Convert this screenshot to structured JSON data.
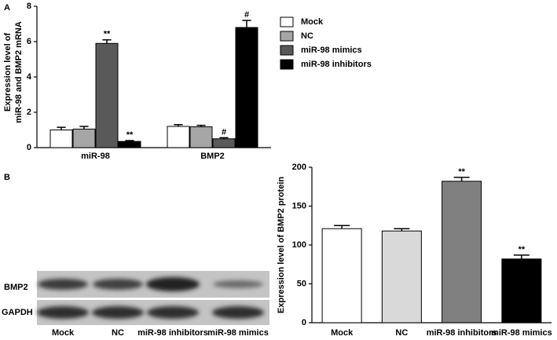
{
  "chart_data": [
    {
      "type": "bar",
      "panel": "A",
      "y_label": [
        "Expression level of",
        "miR-98 and BMP2 mRNA"
      ],
      "categories": [
        "miR-98",
        "BMP2"
      ],
      "series": [
        {
          "name": "Mock",
          "color": "#ffffff",
          "values": [
            1.0,
            1.2
          ],
          "errors": [
            0.15,
            0.1
          ],
          "significance": [
            null,
            null
          ]
        },
        {
          "name": "NC",
          "color": "#a6a6a6",
          "values": [
            1.05,
            1.18
          ],
          "errors": [
            0.15,
            0.08
          ],
          "significance": [
            null,
            null
          ]
        },
        {
          "name": "miR-98 mimics",
          "color": "#595959",
          "values": [
            5.9,
            0.5
          ],
          "errors": [
            0.2,
            0.06
          ],
          "significance": [
            "**",
            "#"
          ]
        },
        {
          "name": "miR-98 inhibitors",
          "color": "#000000",
          "values": [
            0.35,
            6.8
          ],
          "errors": [
            0.05,
            0.4
          ],
          "significance": [
            "**",
            "#"
          ]
        }
      ],
      "ylim": [
        0,
        8
      ],
      "yticks": [
        0,
        2,
        4,
        6,
        8
      ],
      "legend": "right"
    },
    {
      "type": "bar",
      "panel": "B",
      "y_label": [
        "Expression level of BMP2 protein"
      ],
      "categories": [
        "Mock",
        "NC",
        "miR-98 inhibitors",
        "miR-98 mimics"
      ],
      "values": [
        121,
        118,
        182,
        82
      ],
      "errors": [
        4,
        3,
        5,
        5
      ],
      "significance": [
        null,
        null,
        "**",
        "**"
      ],
      "colors": [
        "#ffffff",
        "#d9d9d9",
        "#808080",
        "#000000"
      ],
      "ylim": [
        0,
        200
      ],
      "yticks": [
        0,
        50,
        100,
        150,
        200
      ]
    }
  ],
  "blot": {
    "rows": [
      "BMP2",
      "GAPDH"
    ],
    "lanes": [
      "Mock",
      "NC",
      "miR-98 inhibitors",
      "miR-98 mimics"
    ]
  }
}
